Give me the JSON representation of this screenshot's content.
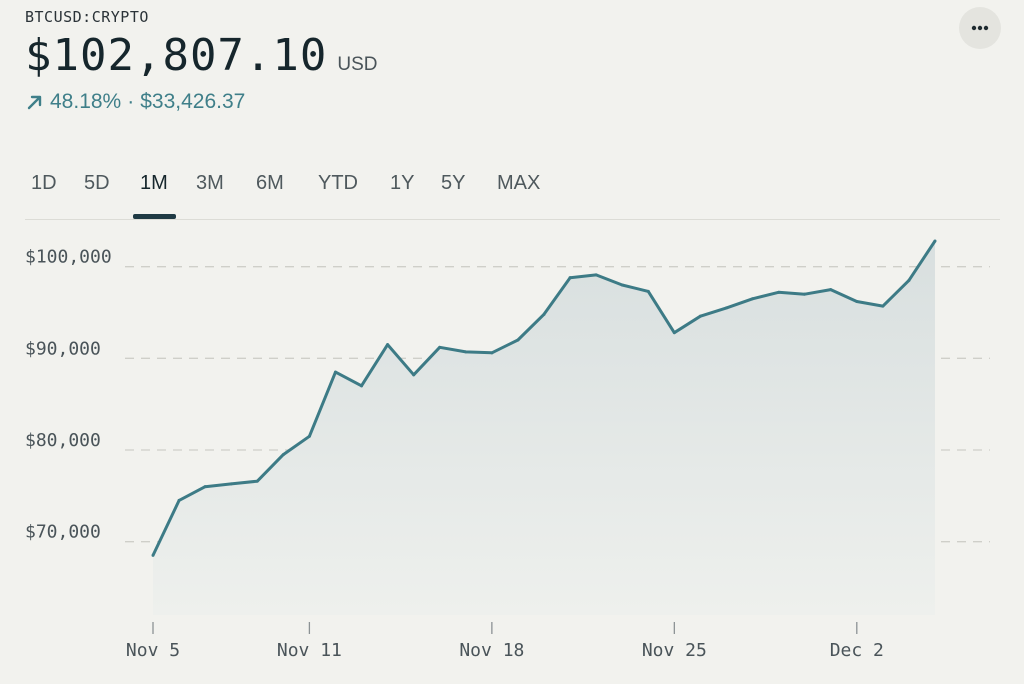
{
  "header": {
    "ticker": "BTCUSD:CRYPTO",
    "price": "$102,807.10",
    "currency": "USD",
    "change_percent": "48.18%",
    "change_separator": "·",
    "change_amount": "$33,426.37",
    "menu_icon": "more-dots-icon"
  },
  "tabs": [
    {
      "label": "1D",
      "active": false
    },
    {
      "label": "5D",
      "active": false
    },
    {
      "label": "1M",
      "active": true
    },
    {
      "label": "3M",
      "active": false
    },
    {
      "label": "6M",
      "active": false
    },
    {
      "label": "YTD",
      "active": false
    },
    {
      "label": "1Y",
      "active": false
    },
    {
      "label": "5Y",
      "active": false
    },
    {
      "label": "MAX",
      "active": false
    }
  ],
  "colors": {
    "line": "#3d7b86",
    "fill": "#dde3e3",
    "grid": "#cfcfc9",
    "positive": "#3f7f89"
  },
  "chart_data": {
    "type": "line",
    "title": "",
    "xlabel": "",
    "ylabel": "",
    "ylim": [
      62000,
      104000
    ],
    "y_ticks": [
      {
        "value": 100000,
        "label": "$100,000"
      },
      {
        "value": 90000,
        "label": "$90,000"
      },
      {
        "value": 80000,
        "label": "$80,000"
      },
      {
        "value": 70000,
        "label": "$70,000"
      }
    ],
    "x_ticks": [
      "Nov 5",
      "Nov 11",
      "Nov 18",
      "Nov 25",
      "Dec 2"
    ],
    "x_range": [
      "Nov 5",
      "Dec 5"
    ],
    "grid": "horizontal dashed",
    "series": [
      {
        "name": "",
        "x": [
          "Nov 5",
          "Nov 6",
          "Nov 7",
          "Nov 8",
          "Nov 9",
          "Nov 10",
          "Nov 11",
          "Nov 12",
          "Nov 13",
          "Nov 14",
          "Nov 15",
          "Nov 16",
          "Nov 17",
          "Nov 18",
          "Nov 19",
          "Nov 20",
          "Nov 21",
          "Nov 22",
          "Nov 23",
          "Nov 24",
          "Nov 25",
          "Nov 26",
          "Nov 27",
          "Nov 28",
          "Nov 29",
          "Nov 30",
          "Dec 1",
          "Dec 2",
          "Dec 3",
          "Dec 4",
          "Dec 5"
        ],
        "values": [
          68500,
          74500,
          76000,
          76300,
          76600,
          79500,
          81500,
          88500,
          87000,
          91500,
          88200,
          91200,
          90700,
          90600,
          92000,
          94800,
          98800,
          99100,
          98000,
          97300,
          92800,
          94600,
          95500,
          96500,
          97200,
          97000,
          97500,
          96200,
          95700,
          98500,
          102800
        ]
      }
    ]
  }
}
